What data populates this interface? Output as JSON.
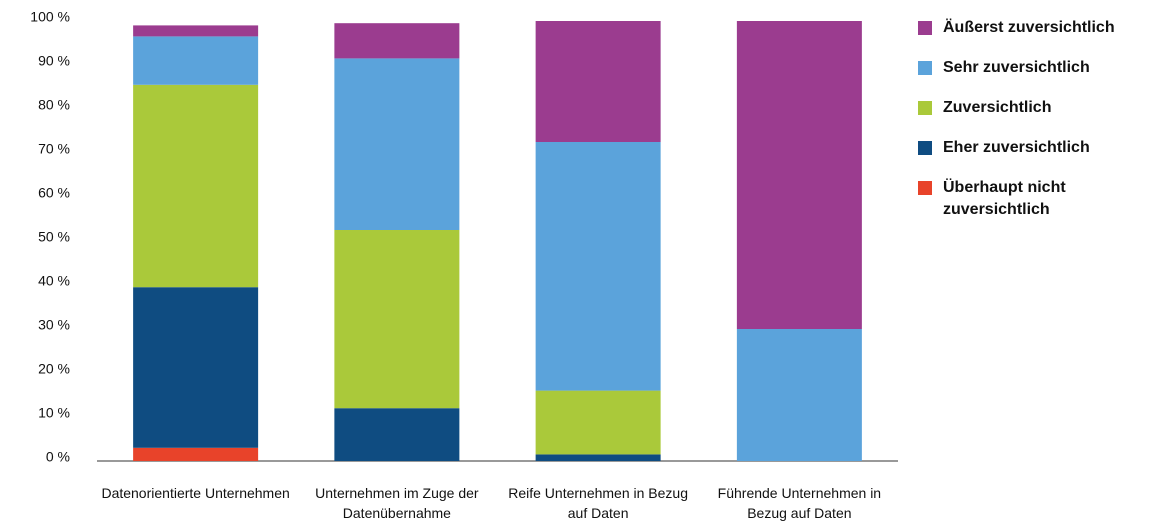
{
  "chart_data": {
    "type": "stacked_bar",
    "categories": [
      "Datenorientierte Unternehmen",
      "Unternehmen im Zuge der Datenübernahme",
      "Reife Unternehmen in Bezug auf Daten",
      "Führende Unternehmen in Bezug auf Daten"
    ],
    "series": [
      {
        "name": "Überhaupt nicht zuversichtlich",
        "color": "#e8432a",
        "values": [
          3,
          0,
          0,
          0
        ]
      },
      {
        "name": "Eher zuversichtlich",
        "color": "#0f4c81",
        "values": [
          36.5,
          12,
          1.5,
          0
        ]
      },
      {
        "name": "Zuversichtlich",
        "color": "#aac93a",
        "values": [
          46,
          40.5,
          14.5,
          0
        ]
      },
      {
        "name": "Sehr zuversichtlich",
        "color": "#5ba3db",
        "values": [
          11,
          39,
          56.5,
          30
        ]
      },
      {
        "name": "Äußerst zuversichtlich",
        "color": "#9b3c8f",
        "values": [
          2.5,
          8,
          27.5,
          70
        ]
      }
    ],
    "ylim": [
      0,
      100
    ],
    "yticks": [
      {
        "value": 0,
        "label": "0 %"
      },
      {
        "value": 10,
        "label": "10 %"
      },
      {
        "value": 20,
        "label": "20 %"
      },
      {
        "value": 30,
        "label": "30 %"
      },
      {
        "value": 40,
        "label": "40 %"
      },
      {
        "value": 50,
        "label": "50 %"
      },
      {
        "value": 60,
        "label": "60 %"
      },
      {
        "value": 70,
        "label": "70 %"
      },
      {
        "value": 80,
        "label": "80 %"
      },
      {
        "value": 90,
        "label": "90 %"
      },
      {
        "value": 100,
        "label": "100 %"
      }
    ],
    "grid": false,
    "legend": "right"
  }
}
